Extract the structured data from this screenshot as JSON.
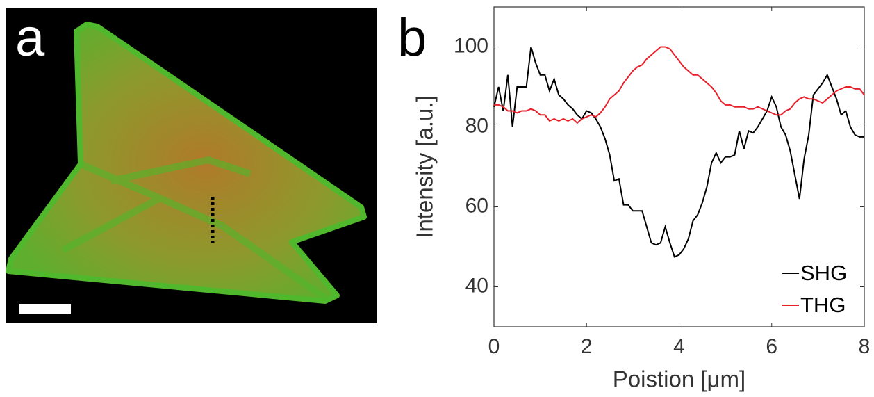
{
  "panel_labels": [
    "a",
    "b"
  ],
  "chart_data": {
    "type": "line",
    "xlabel": "Poistion [μm]",
    "ylabel": "Intensity [a.u.]",
    "x": [
      0,
      0.1,
      0.2,
      0.3,
      0.4,
      0.5,
      0.6,
      0.7,
      0.8,
      0.9,
      1,
      1.1,
      1.2,
      1.3,
      1.4,
      1.5,
      1.6,
      1.7,
      1.8,
      1.9,
      2,
      2.1,
      2.2,
      2.3,
      2.4,
      2.5,
      2.6,
      2.7,
      2.8,
      2.9,
      3,
      3.1,
      3.2,
      3.3,
      3.4,
      3.5,
      3.6,
      3.7,
      3.8,
      3.9,
      4,
      4.1,
      4.2,
      4.3,
      4.4,
      4.5,
      4.6,
      4.7,
      4.8,
      4.9,
      5,
      5.1,
      5.2,
      5.3,
      5.4,
      5.5,
      5.6,
      5.7,
      5.8,
      5.9,
      6,
      6.1,
      6.2,
      6.3,
      6.4,
      6.5,
      6.6,
      6.7,
      6.8,
      6.9,
      7,
      7.1,
      7.2,
      7.3,
      7.4,
      7.5,
      7.6,
      7.7,
      7.8,
      7.9,
      8
    ],
    "series": [
      {
        "name": "SHG",
        "color": "#000000",
        "values": [
          85,
          90,
          84,
          93,
          80,
          90,
          90,
          90,
          100,
          96,
          93,
          93,
          89,
          92,
          88,
          87,
          85.5,
          84.5,
          83,
          82,
          84,
          83.5,
          82,
          80,
          77,
          73,
          66.5,
          67,
          60.5,
          60.5,
          59,
          59,
          59,
          55,
          51,
          50.5,
          51,
          55,
          51,
          47.5,
          48,
          49.5,
          52,
          56.5,
          58,
          61,
          65,
          71,
          73.5,
          71,
          72.5,
          72.5,
          73,
          79,
          74.5,
          79,
          78.5,
          80,
          82,
          84,
          87.5,
          85,
          80,
          78,
          74,
          68,
          62,
          72,
          78,
          88,
          89.5,
          91,
          93,
          90,
          87,
          83,
          84,
          80,
          78,
          77.5,
          77.5
        ]
      },
      {
        "name": "THG",
        "color": "#e8202a",
        "values": [
          85.5,
          85.5,
          85,
          84,
          84,
          83.5,
          84,
          84,
          84.5,
          84,
          83,
          83,
          81.5,
          82,
          81.5,
          82,
          81.5,
          82,
          81,
          82,
          82.5,
          83,
          82.5,
          83.5,
          85,
          87,
          88,
          89,
          91,
          92.5,
          94,
          95,
          95.5,
          97,
          98,
          99,
          100,
          100,
          99.5,
          98,
          96.5,
          95,
          94,
          93,
          93,
          92,
          91,
          90,
          88.5,
          86.5,
          85.5,
          85.5,
          85,
          85,
          85,
          84.5,
          84.5,
          85,
          84.5,
          84,
          83.5,
          83,
          83,
          84,
          84.5,
          86,
          87,
          87.5,
          87,
          87,
          86.5,
          86,
          87,
          88,
          89,
          89.5,
          90,
          90,
          89.5,
          89.5,
          88
        ]
      }
    ],
    "xlim": [
      0,
      8
    ],
    "ylim": [
      30,
      110
    ],
    "xticks": [
      0,
      2,
      4,
      6,
      8
    ],
    "yticks": [
      40,
      60,
      80,
      100
    ],
    "legend": "lower right"
  }
}
